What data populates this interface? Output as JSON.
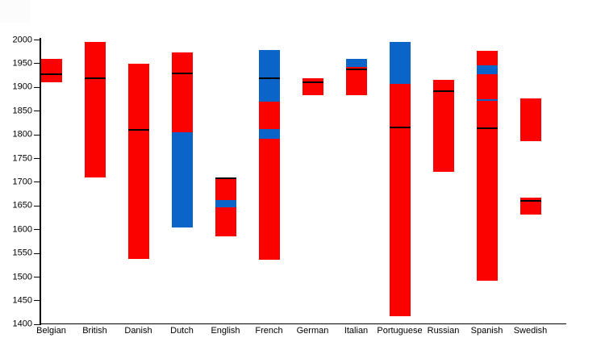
{
  "chart_data": {
    "type": "bar",
    "subtype": "floating-stacked-range-bars",
    "title": "",
    "xlabel": "",
    "ylabel": "",
    "ylim": [
      1400,
      2000
    ],
    "ytick_step": 50,
    "y_ticks": [
      1400,
      1450,
      1500,
      1550,
      1600,
      1650,
      1700,
      1750,
      1800,
      1850,
      1900,
      1950,
      2000
    ],
    "grid": false,
    "legend": false,
    "colors": {
      "red": "#fb0200",
      "blue": "#0b65c8",
      "line": "#000000"
    },
    "categories": [
      "Belgian",
      "British",
      "Danish",
      "Dutch",
      "English",
      "French",
      "German",
      "Italian",
      "Portuguese",
      "Russian",
      "Spanish",
      "Swedish"
    ],
    "bars": [
      {
        "category": "Belgian",
        "segments": [
          {
            "from": 1910,
            "to": 1960,
            "color": "red"
          }
        ],
        "lines": [
          1928
        ]
      },
      {
        "category": "British",
        "segments": [
          {
            "from": 1710,
            "to": 1995,
            "color": "red"
          }
        ],
        "lines": [
          1920
        ]
      },
      {
        "category": "Danish",
        "segments": [
          {
            "from": 1538,
            "to": 1950,
            "color": "red"
          }
        ],
        "lines": [
          1810
        ]
      },
      {
        "category": "Dutch",
        "segments": [
          {
            "from": 1605,
            "to": 1806,
            "color": "blue"
          },
          {
            "from": 1806,
            "to": 1973,
            "color": "red"
          }
        ],
        "lines": [
          1929
        ]
      },
      {
        "category": "English",
        "segments": [
          {
            "from": 1586,
            "to": 1647,
            "color": "red"
          },
          {
            "from": 1647,
            "to": 1662,
            "color": "blue"
          },
          {
            "from": 1662,
            "to": 1710,
            "color": "red"
          }
        ],
        "lines": [
          1709
        ]
      },
      {
        "category": "French",
        "segments": [
          {
            "from": 1537,
            "to": 1792,
            "color": "red"
          },
          {
            "from": 1792,
            "to": 1812,
            "color": "blue"
          },
          {
            "from": 1812,
            "to": 1870,
            "color": "red"
          },
          {
            "from": 1870,
            "to": 1979,
            "color": "blue"
          }
        ],
        "lines": [
          1919
        ]
      },
      {
        "category": "German",
        "segments": [
          {
            "from": 1884,
            "to": 1919,
            "color": "red"
          }
        ],
        "lines": [
          1910
        ]
      },
      {
        "category": "Italian",
        "segments": [
          {
            "from": 1884,
            "to": 1943,
            "color": "red"
          },
          {
            "from": 1943,
            "to": 1960,
            "color": "blue"
          }
        ],
        "lines": [
          1938
        ]
      },
      {
        "category": "Portuguese",
        "segments": [
          {
            "from": 1418,
            "to": 1907,
            "color": "red"
          },
          {
            "from": 1907,
            "to": 1996,
            "color": "blue"
          }
        ],
        "lines": [
          1816
        ]
      },
      {
        "category": "Russian",
        "segments": [
          {
            "from": 1722,
            "to": 1916,
            "color": "red"
          }
        ],
        "lines": [
          1892
        ]
      },
      {
        "category": "Spanish",
        "segments": [
          {
            "from": 1493,
            "to": 1871,
            "color": "red"
          },
          {
            "from": 1871,
            "to": 1875,
            "color": "blue"
          },
          {
            "from": 1875,
            "to": 1928,
            "color": "red"
          },
          {
            "from": 1928,
            "to": 1946,
            "color": "blue"
          },
          {
            "from": 1946,
            "to": 1977,
            "color": "red"
          }
        ],
        "lines": [
          1813
        ]
      },
      {
        "category": "Swedish",
        "segments": [
          {
            "from": 1787,
            "to": 1877,
            "color": "red"
          },
          {
            "from": 1632,
            "to": 1668,
            "color": "red"
          }
        ],
        "lines": [
          1660
        ]
      }
    ]
  }
}
